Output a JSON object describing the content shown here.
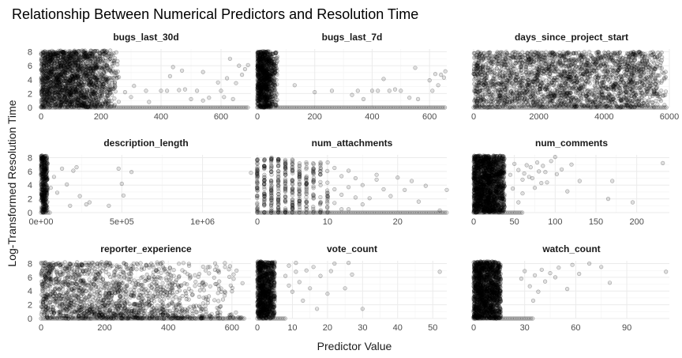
{
  "chart_data": {
    "type": "scatter",
    "title": "Relationship Between Numerical Predictors and Resolution Time",
    "xlabel": "Predictor Value",
    "ylabel": "Log-Transformed Resolution Time",
    "point_color": "#000000",
    "point_alpha": 0.15,
    "y_ticks": [
      "0",
      "2",
      "4",
      "6",
      "8"
    ],
    "ylim_rows": [
      [
        0,
        8.4
      ],
      [
        0,
        8.4
      ],
      [
        0,
        8.4
      ]
    ],
    "facets": [
      {
        "name": "bugs_last_30d",
        "xlim": [
          0,
          700
        ],
        "x_ticks": [
          0,
          200,
          400,
          600
        ],
        "x_tick_labels": [
          "0",
          "200",
          "400",
          "600"
        ],
        "dense": {
          "x": [
            0,
            260
          ],
          "y": [
            0,
            8.2
          ],
          "fade_x": [
            140,
            270
          ]
        },
        "points": [
          [
            280,
            2.2
          ],
          [
            300,
            1.5
          ],
          [
            310,
            3.1
          ],
          [
            350,
            2.4
          ],
          [
            360,
            0.8
          ],
          [
            400,
            2.4
          ],
          [
            420,
            2.4
          ],
          [
            430,
            4.5
          ],
          [
            440,
            5.8
          ],
          [
            460,
            2.5
          ],
          [
            470,
            5.3
          ],
          [
            480,
            2.6
          ],
          [
            500,
            1.2
          ],
          [
            520,
            2.4
          ],
          [
            540,
            1.0
          ],
          [
            560,
            1.4
          ],
          [
            590,
            3.6
          ],
          [
            600,
            2.4
          ],
          [
            610,
            1.5
          ],
          [
            620,
            4.2
          ],
          [
            640,
            1.2
          ],
          [
            650,
            3.5
          ],
          [
            660,
            6.0
          ],
          [
            670,
            4.7
          ],
          [
            680,
            5.5
          ],
          [
            690,
            6.1
          ],
          [
            540,
            5.1
          ],
          [
            630,
            7.0
          ]
        ],
        "baseline": [
          0,
          690
        ]
      },
      {
        "name": "bugs_last_7d",
        "xlim": [
          0,
          660
        ],
        "x_ticks": [
          0,
          200,
          400,
          600
        ],
        "x_tick_labels": [
          "0",
          "200",
          "400",
          "600"
        ],
        "dense": {
          "x": [
            0,
            70
          ],
          "y": [
            0,
            8.1
          ],
          "fade_x": [
            30,
            75
          ]
        },
        "points": [
          [
            130,
            3.2
          ],
          [
            200,
            2.2
          ],
          [
            260,
            2.4
          ],
          [
            330,
            1.8
          ],
          [
            350,
            2.4
          ],
          [
            370,
            1.2
          ],
          [
            400,
            2.4
          ],
          [
            420,
            2.4
          ],
          [
            440,
            4.1
          ],
          [
            460,
            2.4
          ],
          [
            480,
            2.6
          ],
          [
            500,
            2.4
          ],
          [
            530,
            1.4
          ],
          [
            550,
            5.7
          ],
          [
            560,
            1.2
          ],
          [
            600,
            3.9
          ],
          [
            610,
            2.4
          ],
          [
            620,
            4.8
          ],
          [
            630,
            3.2
          ],
          [
            640,
            4.7
          ],
          [
            650,
            4.3
          ],
          [
            655,
            5.2
          ]
        ],
        "baseline": [
          0,
          655
        ]
      },
      {
        "name": "days_since_project_start",
        "xlim": [
          0,
          6000
        ],
        "x_ticks": [
          0,
          2000,
          4000,
          6000
        ],
        "x_tick_labels": [
          "0",
          "2000",
          "4000",
          "6000"
        ],
        "dense": {
          "x": [
            0,
            5950
          ],
          "y": [
            0,
            8.0
          ],
          "fade_x": [
            5200,
            6000
          ]
        },
        "points": [],
        "baseline": [
          0,
          5950
        ]
      },
      {
        "name": "description_length",
        "xlim": [
          0,
          1300000
        ],
        "x_ticks": [
          0,
          500000,
          1000000
        ],
        "x_tick_labels": [
          "0e+00",
          "5e+05",
          "1e+06"
        ],
        "dense": {
          "x": [
            0,
            40000
          ],
          "y": [
            0,
            8.3
          ],
          "fade_x": [
            20000,
            60000
          ]
        },
        "points": [
          [
            60000,
            3.6
          ],
          [
            80000,
            5.2
          ],
          [
            100000,
            2.9
          ],
          [
            130000,
            6.4
          ],
          [
            160000,
            4.1
          ],
          [
            180000,
            1.0
          ],
          [
            200000,
            6.1
          ],
          [
            220000,
            6.6
          ],
          [
            240000,
            2.4
          ],
          [
            280000,
            1.2
          ],
          [
            300000,
            1.5
          ],
          [
            420000,
            1.0
          ],
          [
            480000,
            6.4
          ],
          [
            500000,
            4.2
          ],
          [
            510000,
            2.5
          ],
          [
            560000,
            5.9
          ],
          [
            1300000,
            5.8
          ]
        ],
        "baseline": [
          0,
          60000
        ]
      },
      {
        "name": "num_attachments",
        "xlim": [
          0,
          27
        ],
        "x_ticks": [
          0,
          10,
          20
        ],
        "x_tick_labels": [
          "0",
          "10",
          "20"
        ],
        "stripes": {
          "x_values": [
            0,
            1,
            2,
            3,
            4,
            5,
            6,
            7,
            8,
            9,
            10
          ],
          "y_max": [
            8.3,
            8.2,
            8.1,
            8.0,
            7.9,
            7.8,
            7.7,
            7.6,
            7.5,
            7.6,
            7.5
          ],
          "density": [
            1,
            1,
            1,
            1,
            0.95,
            0.9,
            0.8,
            0.7,
            0.6,
            0.45,
            0.35
          ]
        },
        "points": [
          [
            11,
            1.4
          ],
          [
            11,
            3.4
          ],
          [
            11,
            6.5
          ],
          [
            12,
            0.5
          ],
          [
            12,
            2.6
          ],
          [
            12,
            5.3
          ],
          [
            13,
            3.7
          ],
          [
            13,
            6.1
          ],
          [
            14,
            2.2
          ],
          [
            14,
            5.0
          ],
          [
            15,
            1.2
          ],
          [
            15,
            4.0
          ],
          [
            16,
            2.1
          ],
          [
            17,
            4.8
          ],
          [
            18,
            3.4
          ],
          [
            19,
            2.4
          ],
          [
            20,
            5.1
          ],
          [
            21,
            3.3
          ],
          [
            22,
            4.6
          ],
          [
            23,
            1.6
          ],
          [
            24,
            3.9
          ],
          [
            26,
            0.3
          ],
          [
            27,
            3.3
          ],
          [
            17,
            5.5
          ],
          [
            13,
            0.5
          ]
        ],
        "baseline": [
          0,
          27
        ]
      },
      {
        "name": "num_comments",
        "xlim": [
          0,
          240
        ],
        "x_ticks": [
          0,
          50,
          100,
          150,
          200
        ],
        "x_tick_labels": [
          "0",
          "50",
          "100",
          "150",
          "200"
        ],
        "dense": {
          "x": [
            0,
            38
          ],
          "y": [
            0,
            8.3
          ],
          "fade_x": [
            20,
            60
          ]
        },
        "points": [
          [
            45,
            5.5
          ],
          [
            50,
            7.1
          ],
          [
            55,
            6.2
          ],
          [
            60,
            4.8
          ],
          [
            62,
            5.7
          ],
          [
            65,
            6.9
          ],
          [
            68,
            5.2
          ],
          [
            70,
            6.6
          ],
          [
            72,
            5.0
          ],
          [
            75,
            3.6
          ],
          [
            78,
            7.3
          ],
          [
            80,
            6.0
          ],
          [
            83,
            4.3
          ],
          [
            85,
            6.8
          ],
          [
            88,
            5.9
          ],
          [
            90,
            4.4
          ],
          [
            95,
            7.5
          ],
          [
            100,
            8.1
          ],
          [
            102,
            5.6
          ],
          [
            108,
            6.3
          ],
          [
            115,
            3.1
          ],
          [
            120,
            7.0
          ],
          [
            130,
            4.6
          ],
          [
            165,
            2.0
          ],
          [
            170,
            4.6
          ],
          [
            195,
            1.5
          ],
          [
            232,
            7.2
          ],
          [
            60,
            2.8
          ],
          [
            48,
            3.5
          ],
          [
            55,
            1.5
          ]
        ],
        "baseline": [
          0,
          60
        ]
      },
      {
        "name": "reporter_experience",
        "xlim": [
          0,
          660
        ],
        "x_ticks": [
          0,
          200,
          400,
          600
        ],
        "x_tick_labels": [
          "0",
          "200",
          "400",
          "600"
        ],
        "dense": {
          "x": [
            0,
            640
          ],
          "y": [
            0,
            8.2
          ],
          "fade_x": [
            150,
            650
          ],
          "fade_top": true
        },
        "points": [],
        "baseline": [
          0,
          640
        ]
      },
      {
        "name": "vote_count",
        "xlim": [
          0,
          54
        ],
        "x_ticks": [
          0,
          10,
          20,
          30,
          40,
          50
        ],
        "x_tick_labels": [
          "0",
          "10",
          "20",
          "30",
          "40",
          "50"
        ],
        "dense": {
          "x": [
            0,
            5
          ],
          "y": [
            0,
            8.3
          ],
          "fade_x": [
            2,
            9
          ]
        },
        "points": [
          [
            8,
            6.2
          ],
          [
            9,
            4.8
          ],
          [
            9,
            7.7
          ],
          [
            10,
            3.9
          ],
          [
            11,
            6.8
          ],
          [
            11,
            8.1
          ],
          [
            12,
            5.3
          ],
          [
            13,
            2.6
          ],
          [
            14,
            7.0
          ],
          [
            15,
            4.4
          ],
          [
            16,
            7.5
          ],
          [
            17,
            1.4
          ],
          [
            18,
            6.2
          ],
          [
            20,
            3.6
          ],
          [
            21,
            6.9
          ],
          [
            22,
            8.0
          ],
          [
            25,
            4.4
          ],
          [
            26,
            8.1
          ],
          [
            27,
            6.4
          ],
          [
            30,
            1.4
          ],
          [
            52,
            6.8
          ]
        ],
        "baseline": [
          0,
          8
        ]
      },
      {
        "name": "watch_count",
        "xlim": [
          0,
          115
        ],
        "x_ticks": [
          0,
          30,
          60,
          90
        ],
        "x_tick_labels": [
          "0",
          "30",
          "60",
          "90"
        ],
        "dense": {
          "x": [
            0,
            16
          ],
          "y": [
            0,
            8.3
          ],
          "fade_x": [
            8,
            30
          ]
        },
        "points": [
          [
            28,
            5.8
          ],
          [
            30,
            6.9
          ],
          [
            33,
            4.7
          ],
          [
            36,
            6.3
          ],
          [
            38,
            3.9
          ],
          [
            40,
            7.1
          ],
          [
            42,
            5.4
          ],
          [
            45,
            6.6
          ],
          [
            48,
            6.0
          ],
          [
            50,
            7.4
          ],
          [
            55,
            4.3
          ],
          [
            58,
            7.8
          ],
          [
            62,
            6.5
          ],
          [
            68,
            8.0
          ],
          [
            75,
            7.5
          ],
          [
            80,
            5.2
          ],
          [
            113,
            6.8
          ],
          [
            35,
            2.6
          ]
        ],
        "baseline": [
          0,
          35
        ]
      }
    ]
  }
}
